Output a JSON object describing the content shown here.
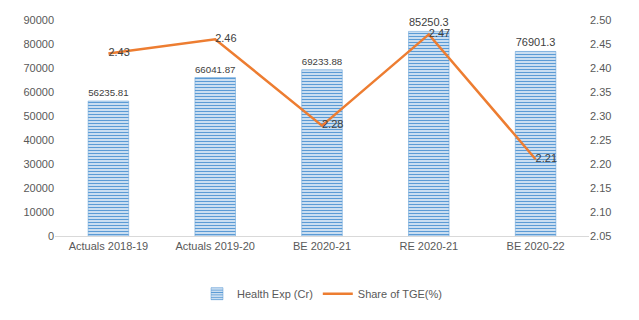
{
  "chart_data": {
    "type": "bar",
    "categories": [
      "Actuals 2018-19",
      "Actuals 2019-20",
      "BE 2020-21",
      "RE 2020-21",
      "BE 2020-22"
    ],
    "series": [
      {
        "name": "Health Exp (Cr)",
        "type": "bar",
        "color": "#5b9bd5",
        "values": [
          56235.81,
          66041.87,
          69233.88,
          85250.3,
          76901.3
        ]
      },
      {
        "name": "Share of TGE(%)",
        "type": "line",
        "color": "#ed7d31",
        "axis": "y2",
        "values": [
          2.43,
          2.46,
          2.28,
          2.47,
          2.21
        ]
      }
    ],
    "ylim": [
      0,
      90000
    ],
    "yticks": [
      0,
      10000,
      20000,
      30000,
      40000,
      50000,
      60000,
      70000,
      80000,
      90000
    ],
    "y2lim": [
      2.05,
      2.5
    ],
    "y2ticks": [
      2.05,
      {
        "value": 2.1,
        "label": "2.10"
      },
      2.15,
      {
        "value": 2.2,
        "label": "2.20"
      },
      2.25,
      {
        "value": 2.3,
        "label": "2.30"
      },
      2.35,
      {
        "value": 2.4,
        "label": "2.40"
      },
      2.45,
      {
        "value": 2.5,
        "label": "2.50"
      }
    ],
    "grid": false,
    "data_labels": true,
    "legend": "bottom"
  }
}
